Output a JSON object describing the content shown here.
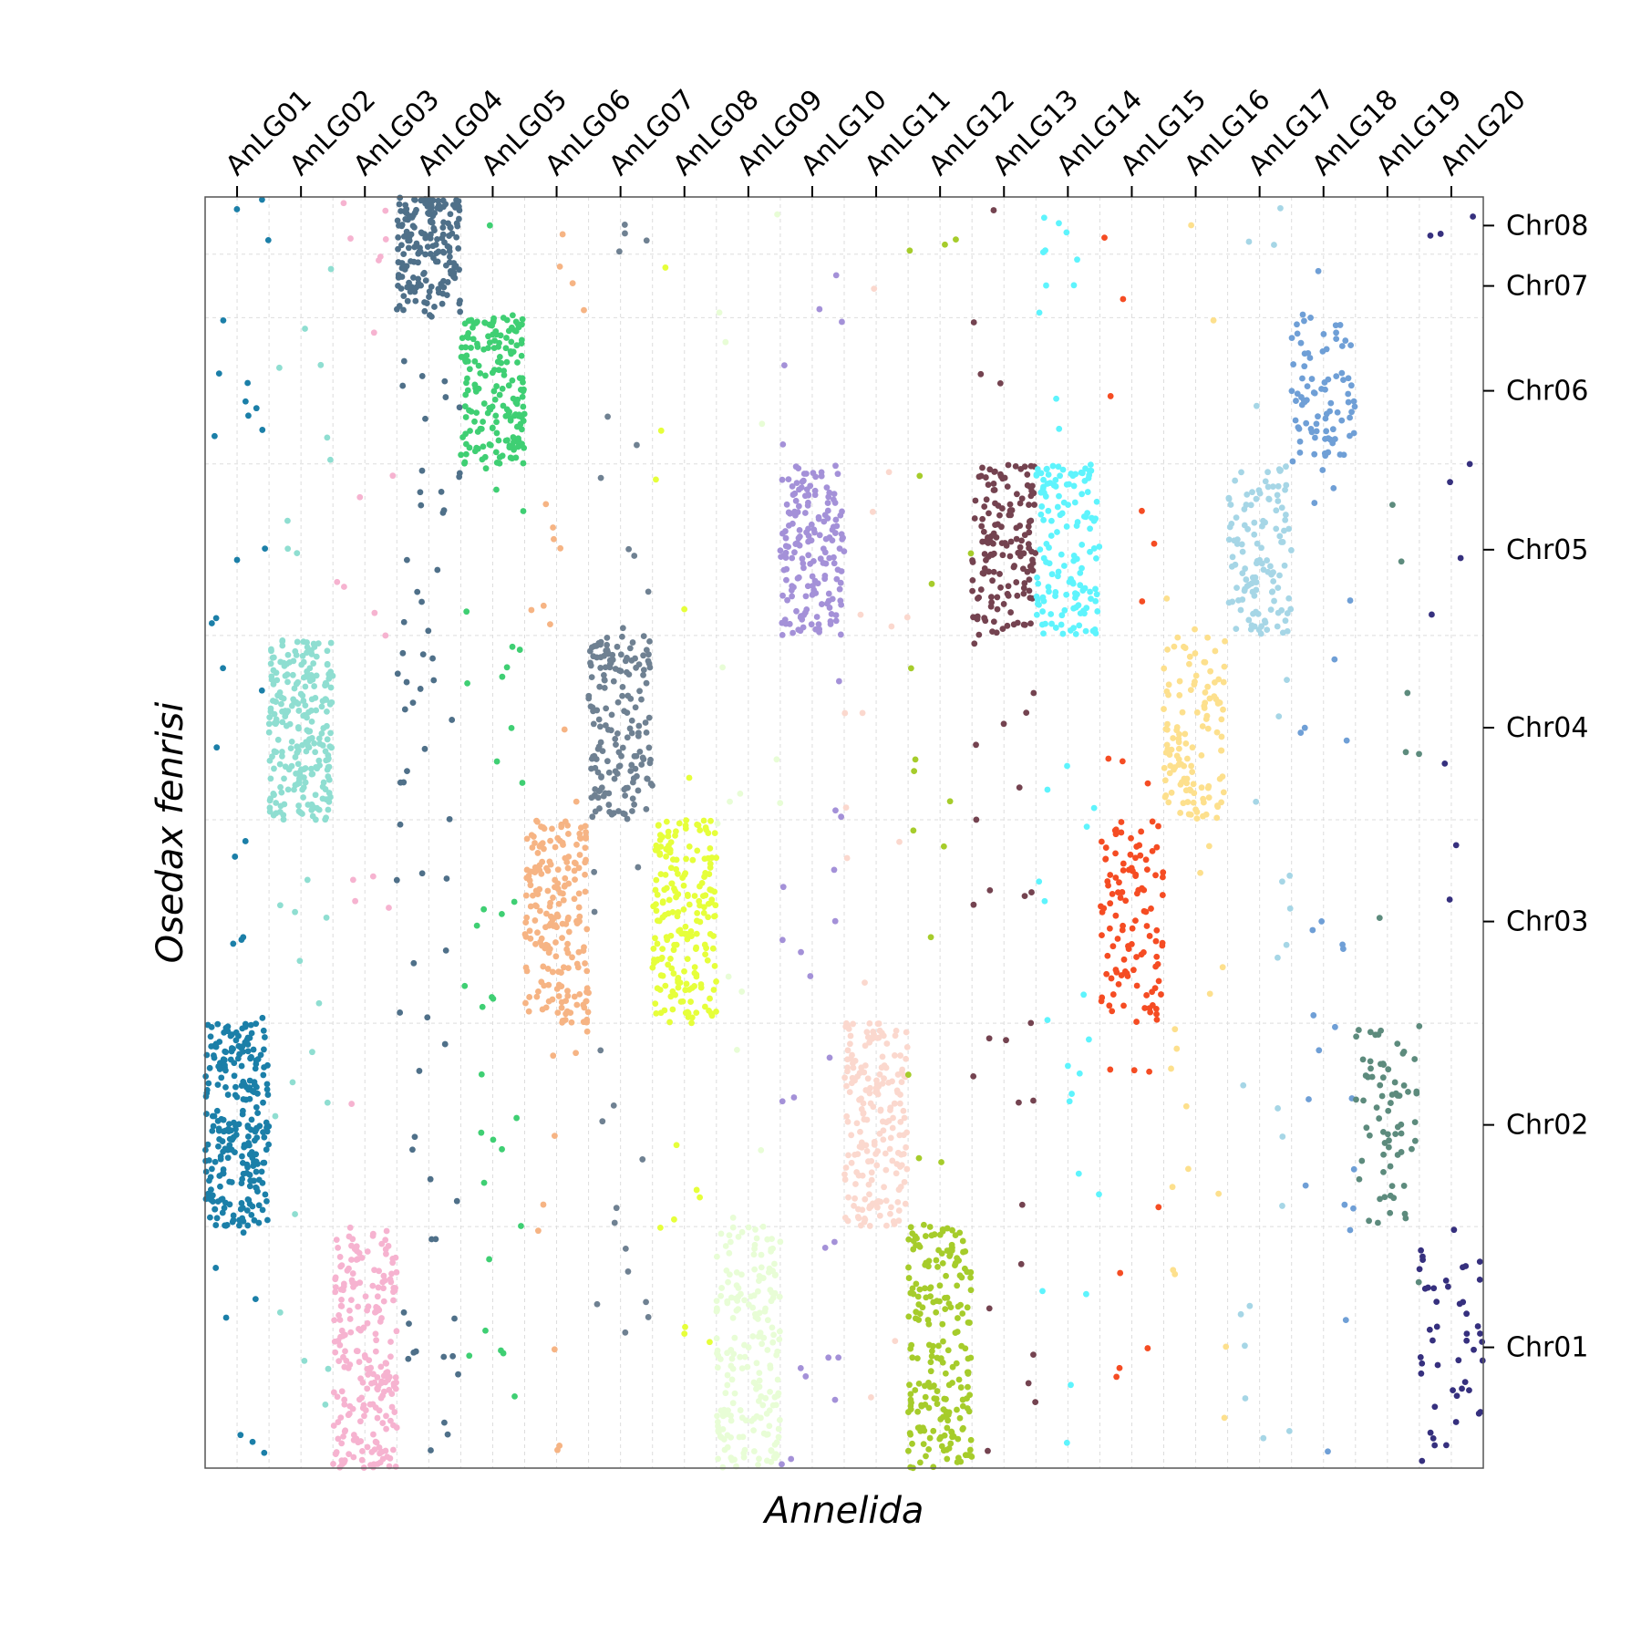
{
  "chart_data": {
    "type": "scatter",
    "subtype": "oxford-dot-plot",
    "xlabel": "Annelida",
    "ylabel": "Osedax fenrisi",
    "grid": true,
    "x_axis_position": "top",
    "y_axis_position": "right",
    "categories_x": [
      "AnLG01",
      "AnLG02",
      "AnLG03",
      "AnLG04",
      "AnLG05",
      "AnLG06",
      "AnLG07",
      "AnLG08",
      "AnLG09",
      "AnLG10",
      "AnLG11",
      "AnLG12",
      "AnLG13",
      "AnLG14",
      "AnLG15",
      "AnLG16",
      "AnLG17",
      "AnLG18",
      "AnLG19",
      "AnLG20"
    ],
    "categories_y": [
      {
        "name": "Chr01",
        "extent": [
          0.0,
          0.19
        ]
      },
      {
        "name": "Chr02",
        "extent": [
          0.19,
          0.35
        ]
      },
      {
        "name": "Chr03",
        "extent": [
          0.35,
          0.51
        ]
      },
      {
        "name": "Chr04",
        "extent": [
          0.51,
          0.655
        ]
      },
      {
        "name": "Chr05",
        "extent": [
          0.655,
          0.79
        ]
      },
      {
        "name": "Chr06",
        "extent": [
          0.79,
          0.905
        ]
      },
      {
        "name": "Chr07",
        "extent": [
          0.905,
          0.955
        ]
      },
      {
        "name": "Chr08",
        "extent": [
          0.955,
          1.0
        ]
      }
    ],
    "x_range": [
      0,
      20
    ],
    "y_range": [
      0,
      1
    ],
    "series": [
      {
        "lg": "AnLG01",
        "color": "#1b7fa8",
        "block_chr": "Chr02",
        "block_x": [
          0.0,
          1.0
        ],
        "dense": 260,
        "scattered": 38
      },
      {
        "lg": "AnLG02",
        "color": "#8fded1",
        "block_chr": "Chr04",
        "block_x": [
          1.0,
          2.0
        ],
        "dense": 240,
        "scattered": 28
      },
      {
        "lg": "AnLG03",
        "color": "#f6b3d0",
        "block_chr": "Chr01",
        "block_x": [
          2.0,
          3.0
        ],
        "dense": 220,
        "scattered": 26
      },
      {
        "lg": "AnLG04",
        "color": "#4f7089",
        "block_chr": "Chr08",
        "block_x": [
          3.0,
          4.0
        ],
        "dense": 110,
        "scattered": 70,
        "block2_chr": "Chr07",
        "dense2": 70
      },
      {
        "lg": "AnLG05",
        "color": "#3fcf73",
        "block_chr": "Chr06",
        "block_x": [
          4.0,
          5.0
        ],
        "dense": 180,
        "scattered": 40
      },
      {
        "lg": "AnLG06",
        "color": "#f6b484",
        "block_chr": "Chr03",
        "block_x": [
          5.0,
          6.0
        ],
        "dense": 200,
        "scattered": 26
      },
      {
        "lg": "AnLG07",
        "color": "#6f8192",
        "block_chr": "Chr04",
        "block_x": [
          6.0,
          7.0
        ],
        "dense": 170,
        "scattered": 28
      },
      {
        "lg": "AnLG08",
        "color": "#e6ff3a",
        "block_chr": "Chr03",
        "block_x": [
          7.0,
          8.0
        ],
        "dense": 200,
        "scattered": 16
      },
      {
        "lg": "AnLG09",
        "color": "#e8fdd6",
        "block_chr": "Chr01",
        "block_x": [
          8.0,
          9.0
        ],
        "dense": 200,
        "scattered": 18
      },
      {
        "lg": "AnLG10",
        "color": "#a491d8",
        "block_chr": "Chr05",
        "block_x": [
          9.0,
          10.0
        ],
        "dense": 170,
        "scattered": 30
      },
      {
        "lg": "AnLG11",
        "color": "#fbd8ce",
        "block_chr": "Chr02",
        "block_x": [
          10.0,
          11.0
        ],
        "dense": 190,
        "scattered": 22
      },
      {
        "lg": "AnLG12",
        "color": "#a6cc2b",
        "block_chr": "Chr01",
        "block_x": [
          11.0,
          12.0
        ],
        "dense": 210,
        "scattered": 20
      },
      {
        "lg": "AnLG13",
        "color": "#744350",
        "block_chr": "Chr05",
        "block_x": [
          12.0,
          13.0
        ],
        "dense": 150,
        "scattered": 32
      },
      {
        "lg": "AnLG14",
        "color": "#5ef4fd",
        "block_chr": "Chr05",
        "block_x": [
          13.0,
          14.0
        ],
        "dense": 140,
        "scattered": 32
      },
      {
        "lg": "AnLG15",
        "color": "#f54c23",
        "block_chr": "Chr03",
        "block_x": [
          14.0,
          15.0
        ],
        "dense": 110,
        "scattered": 18
      },
      {
        "lg": "AnLG16",
        "color": "#fde08d",
        "block_chr": "Chr04",
        "block_x": [
          15.0,
          16.0
        ],
        "dense": 120,
        "scattered": 22
      },
      {
        "lg": "AnLG17",
        "color": "#a6d6e6",
        "block_chr": "Chr05",
        "block_x": [
          16.0,
          17.0
        ],
        "dense": 120,
        "scattered": 24
      },
      {
        "lg": "AnLG18",
        "color": "#6f9fd6",
        "block_chr": "Chr06",
        "block_x": [
          17.0,
          18.0
        ],
        "dense": 80,
        "scattered": 30
      },
      {
        "lg": "AnLG19",
        "color": "#5d8b7d",
        "block_chr": "Chr02",
        "block_x": [
          18.0,
          19.0
        ],
        "dense": 70,
        "scattered": 8
      },
      {
        "lg": "AnLG20",
        "color": "#36307e",
        "block_chr": "Chr01",
        "block_x": [
          19.0,
          20.0
        ],
        "dense": 45,
        "scattered": 12
      }
    ]
  }
}
